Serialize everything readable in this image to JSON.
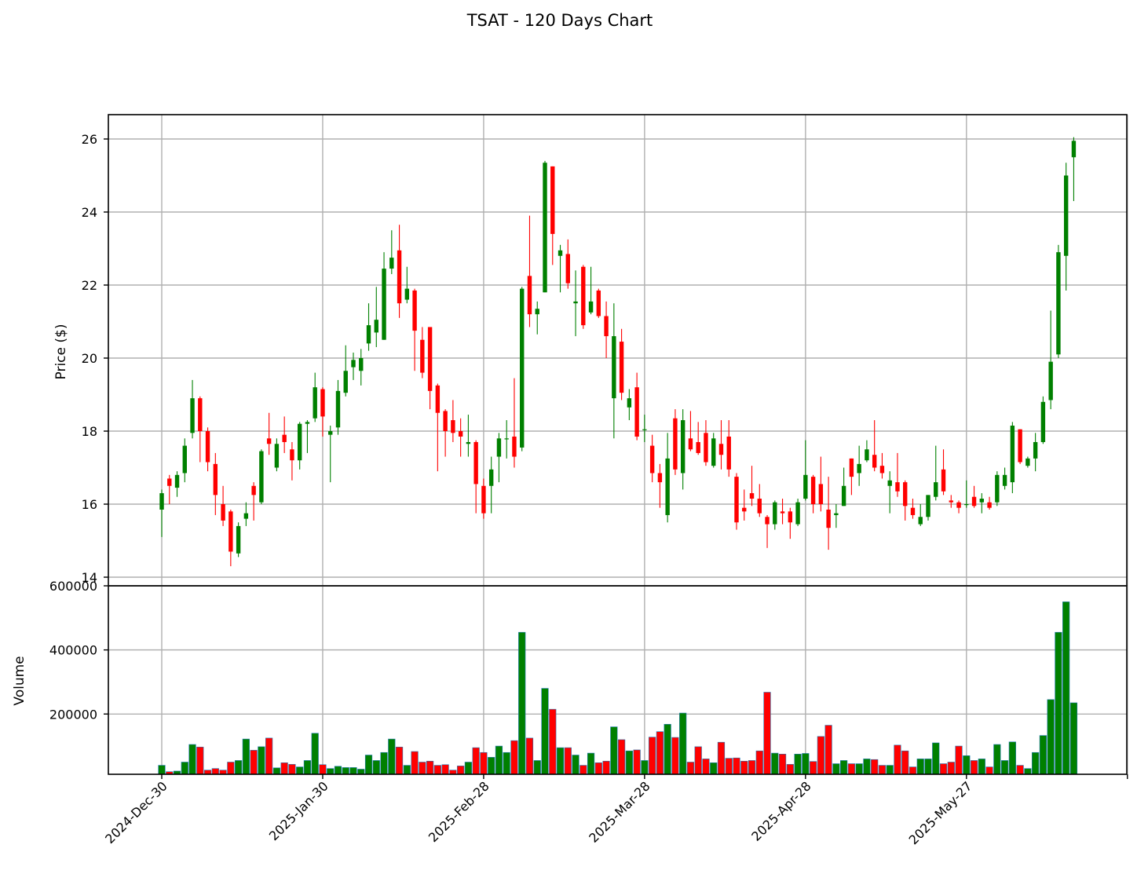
{
  "chart_data": [
    {
      "type": "candlestick",
      "title": "TSAT - 120 Days Chart",
      "xlabel": "",
      "ylabel": "Price ($)",
      "ylim": [
        14,
        26.7
      ],
      "yticks": [
        14,
        16,
        18,
        20,
        22,
        24,
        26
      ],
      "grid": true,
      "up_color": "#008000",
      "down_color": "#ff0000",
      "x_ticks": [
        {
          "index": 0,
          "label": "2024-Dec-30"
        },
        {
          "index": 21,
          "label": "2025-Jan-30"
        },
        {
          "index": 42,
          "label": "2025-Feb-28"
        },
        {
          "index": 63,
          "label": "2025-Mar-28"
        },
        {
          "index": 84,
          "label": "2025-Apr-28"
        },
        {
          "index": 105,
          "label": "2025-May-27"
        },
        {
          "index": 126,
          "label": ""
        }
      ],
      "ohlc": [
        [
          15.85,
          16.4,
          15.1,
          16.3
        ],
        [
          16.7,
          16.8,
          16.0,
          16.5
        ],
        [
          16.45,
          16.9,
          16.2,
          16.8
        ],
        [
          16.85,
          17.8,
          16.6,
          17.6
        ],
        [
          17.95,
          19.4,
          17.8,
          18.9
        ],
        [
          18.9,
          18.95,
          17.15,
          18.0
        ],
        [
          18.0,
          18.1,
          16.9,
          17.15
        ],
        [
          17.1,
          17.4,
          15.7,
          16.25
        ],
        [
          16.0,
          16.5,
          15.4,
          15.55
        ],
        [
          15.8,
          15.85,
          14.3,
          14.7
        ],
        [
          14.65,
          15.5,
          14.55,
          15.4
        ],
        [
          15.6,
          16.05,
          15.4,
          15.75
        ],
        [
          16.5,
          16.6,
          15.55,
          16.25
        ],
        [
          16.05,
          17.5,
          16.0,
          17.45
        ],
        [
          17.8,
          18.5,
          17.35,
          17.65
        ],
        [
          17.0,
          17.8,
          16.9,
          17.65
        ],
        [
          17.9,
          18.4,
          17.4,
          17.7
        ],
        [
          17.5,
          17.7,
          16.65,
          17.2
        ],
        [
          17.2,
          18.25,
          16.95,
          18.2
        ],
        [
          18.2,
          18.3,
          17.4,
          18.25
        ],
        [
          18.35,
          19.6,
          18.25,
          19.2
        ],
        [
          19.15,
          19.2,
          17.85,
          18.4
        ],
        [
          17.9,
          18.15,
          16.6,
          18.0
        ],
        [
          18.1,
          19.4,
          17.9,
          19.1
        ],
        [
          19.05,
          20.35,
          18.95,
          19.65
        ],
        [
          19.75,
          20.15,
          19.4,
          19.95
        ],
        [
          19.65,
          20.25,
          19.25,
          20.0
        ],
        [
          20.4,
          21.5,
          20.2,
          20.9
        ],
        [
          20.7,
          21.95,
          20.3,
          21.05
        ],
        [
          20.5,
          22.9,
          20.5,
          22.45
        ],
        [
          22.45,
          23.5,
          22.3,
          22.75
        ],
        [
          22.95,
          23.65,
          21.1,
          21.5
        ],
        [
          21.6,
          22.5,
          21.5,
          21.9
        ],
        [
          21.85,
          21.9,
          19.65,
          20.75
        ],
        [
          20.5,
          20.85,
          19.45,
          19.6
        ],
        [
          20.85,
          20.85,
          18.6,
          19.1
        ],
        [
          19.25,
          19.3,
          16.9,
          18.5
        ],
        [
          18.55,
          18.6,
          17.3,
          18.0
        ],
        [
          18.3,
          18.85,
          17.7,
          17.95
        ],
        [
          18.0,
          18.35,
          17.3,
          17.85
        ],
        [
          17.65,
          18.45,
          17.3,
          17.7
        ],
        [
          17.7,
          17.75,
          15.75,
          16.55
        ],
        [
          16.5,
          16.7,
          15.6,
          15.75
        ],
        [
          16.5,
          17.3,
          15.75,
          16.95
        ],
        [
          17.3,
          17.95,
          16.6,
          17.8
        ],
        [
          17.8,
          18.3,
          17.25,
          17.8
        ],
        [
          17.85,
          19.45,
          17.0,
          17.3
        ],
        [
          17.55,
          21.95,
          17.45,
          21.9
        ],
        [
          22.25,
          23.9,
          20.85,
          21.2
        ],
        [
          21.2,
          21.55,
          20.65,
          21.35
        ],
        [
          21.8,
          25.4,
          21.8,
          25.35
        ],
        [
          25.25,
          25.25,
          22.55,
          23.4
        ],
        [
          22.8,
          23.1,
          21.8,
          22.95
        ],
        [
          22.85,
          23.25,
          21.9,
          22.05
        ],
        [
          21.5,
          22.4,
          20.6,
          21.55
        ],
        [
          22.5,
          22.55,
          20.8,
          20.9
        ],
        [
          21.25,
          22.5,
          21.2,
          21.55
        ],
        [
          21.85,
          21.9,
          21.1,
          21.15
        ],
        [
          21.15,
          21.55,
          20.0,
          20.6
        ],
        [
          18.9,
          21.5,
          17.8,
          20.6
        ],
        [
          20.45,
          20.8,
          18.85,
          19.05
        ],
        [
          18.65,
          19.15,
          18.3,
          18.9
        ],
        [
          19.2,
          19.6,
          17.75,
          17.85
        ],
        [
          18.05,
          18.45,
          17.7,
          18.05
        ],
        [
          17.6,
          17.9,
          16.6,
          16.85
        ],
        [
          16.85,
          17.1,
          15.9,
          16.6
        ],
        [
          15.7,
          17.95,
          15.5,
          17.25
        ],
        [
          18.35,
          18.6,
          16.8,
          16.95
        ],
        [
          16.85,
          18.6,
          16.4,
          18.3
        ],
        [
          17.8,
          18.55,
          17.45,
          17.5
        ],
        [
          17.7,
          18.25,
          17.35,
          17.4
        ],
        [
          17.95,
          18.3,
          17.05,
          17.15
        ],
        [
          17.05,
          17.95,
          17.0,
          17.8
        ],
        [
          17.65,
          18.3,
          16.95,
          17.35
        ],
        [
          17.85,
          18.3,
          16.75,
          16.95
        ],
        [
          16.75,
          16.85,
          15.3,
          15.5
        ],
        [
          15.9,
          16.4,
          15.55,
          15.8
        ],
        [
          16.3,
          17.05,
          15.95,
          16.15
        ],
        [
          16.15,
          16.55,
          15.65,
          15.75
        ],
        [
          15.65,
          15.7,
          14.8,
          15.45
        ],
        [
          15.45,
          16.1,
          15.3,
          16.05
        ],
        [
          15.8,
          16.15,
          15.45,
          15.75
        ],
        [
          15.8,
          15.9,
          15.05,
          15.5
        ],
        [
          15.45,
          16.15,
          15.4,
          16.05
        ],
        [
          16.15,
          17.75,
          16.1,
          16.8
        ],
        [
          16.75,
          16.8,
          15.75,
          16.0
        ],
        [
          16.55,
          17.3,
          15.8,
          16.0
        ],
        [
          15.85,
          16.75,
          14.75,
          15.35
        ],
        [
          15.7,
          16.0,
          15.35,
          15.75
        ],
        [
          15.95,
          17.0,
          15.95,
          16.5
        ],
        [
          17.25,
          17.25,
          16.25,
          16.75
        ],
        [
          16.85,
          17.6,
          16.5,
          17.1
        ],
        [
          17.2,
          17.75,
          17.15,
          17.5
        ],
        [
          17.35,
          18.3,
          16.9,
          17.0
        ],
        [
          17.05,
          17.4,
          16.7,
          16.85
        ],
        [
          16.5,
          16.9,
          15.75,
          16.65
        ],
        [
          16.6,
          17.4,
          16.2,
          16.35
        ],
        [
          16.6,
          16.65,
          15.55,
          15.95
        ],
        [
          15.9,
          16.15,
          15.6,
          15.7
        ],
        [
          15.45,
          16.0,
          15.4,
          15.65
        ],
        [
          15.65,
          16.25,
          15.55,
          16.25
        ],
        [
          16.2,
          17.6,
          16.1,
          16.6
        ],
        [
          16.95,
          17.5,
          16.25,
          16.35
        ],
        [
          16.1,
          16.25,
          15.9,
          16.05
        ],
        [
          16.05,
          16.1,
          15.75,
          15.9
        ],
        [
          16.0,
          16.65,
          15.9,
          16.0
        ],
        [
          16.2,
          16.5,
          15.9,
          15.95
        ],
        [
          16.05,
          16.3,
          15.75,
          16.15
        ],
        [
          16.05,
          16.2,
          15.85,
          15.9
        ],
        [
          16.05,
          16.9,
          15.95,
          16.8
        ],
        [
          16.5,
          17.0,
          16.4,
          16.8
        ],
        [
          16.6,
          18.25,
          16.3,
          18.15
        ],
        [
          18.05,
          18.05,
          17.1,
          17.15
        ],
        [
          17.05,
          17.3,
          17.0,
          17.25
        ],
        [
          17.25,
          17.95,
          16.9,
          17.7
        ],
        [
          17.7,
          18.95,
          17.65,
          18.8
        ],
        [
          18.85,
          21.3,
          18.6,
          19.9
        ],
        [
          20.1,
          23.1,
          20.0,
          22.9
        ],
        [
          22.8,
          25.35,
          21.85,
          25.0
        ],
        [
          25.5,
          26.05,
          24.3,
          25.95
        ]
      ]
    },
    {
      "type": "bar",
      "title": "",
      "xlabel": "",
      "ylabel": "Volume",
      "ylim": [
        12000,
        600000
      ],
      "yticks": [
        200000,
        400000,
        600000
      ],
      "grid": true,
      "volumes": [
        40000,
        20000,
        22000,
        50000,
        105000,
        97000,
        25000,
        30000,
        25000,
        50000,
        55000,
        122000,
        87000,
        98000,
        125000,
        32000,
        48000,
        43000,
        35000,
        55000,
        140000,
        42000,
        30000,
        37000,
        33000,
        33000,
        28000,
        72000,
        55000,
        80000,
        122000,
        97000,
        40000,
        83000,
        50000,
        53000,
        40000,
        42000,
        25000,
        38000,
        50000,
        95000,
        80000,
        65000,
        100000,
        80000,
        117000,
        455000,
        125000,
        55000,
        280000,
        215000,
        95000,
        95000,
        72000,
        40000,
        78000,
        48000,
        53000,
        160000,
        120000,
        85000,
        88000,
        55000,
        128000,
        145000,
        168000,
        127000,
        203000,
        50000,
        98000,
        60000,
        48000,
        112000,
        62000,
        63000,
        53000,
        55000,
        85000,
        268000,
        78000,
        75000,
        43000,
        75000,
        77000,
        52000,
        130000,
        165000,
        45000,
        55000,
        45000,
        45000,
        60000,
        58000,
        40000,
        40000,
        103000,
        85000,
        35000,
        60000,
        60000,
        110000,
        45000,
        50000,
        100000,
        70000,
        55000,
        60000,
        35000,
        105000,
        55000,
        113000,
        40000,
        30000,
        80000,
        133000,
        245000,
        455000,
        550000,
        235000
      ]
    }
  ]
}
